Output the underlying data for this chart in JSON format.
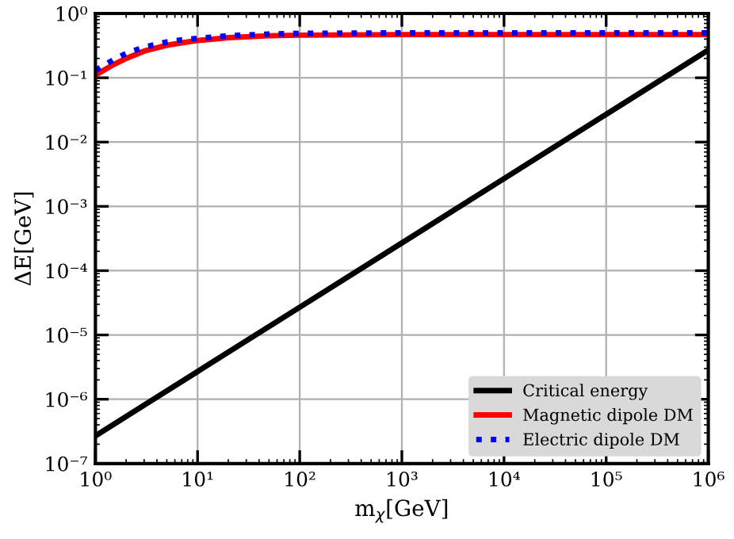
{
  "chart_data": {
    "type": "line",
    "xlabel": "m$_{χ}$[GeV]",
    "ylabel": "ΔE[GeV]",
    "log": "xy",
    "grid": true,
    "legend": "bottom right",
    "xlim": [
      1,
      1000000
    ],
    "ylim": [
      1e-07,
      1
    ],
    "xticks": [
      {
        "value": 1,
        "label": "10⁰"
      },
      {
        "value": 10,
        "label": "10¹"
      },
      {
        "value": 100,
        "label": "10²"
      },
      {
        "value": 1000,
        "label": "10³"
      },
      {
        "value": 10000,
        "label": "10⁴"
      },
      {
        "value": 100000,
        "label": "10⁵"
      },
      {
        "value": 1000000,
        "label": "10⁶"
      }
    ],
    "yticks": [
      {
        "value": 1e-07,
        "label": "10⁻⁷"
      },
      {
        "value": 1e-06,
        "label": "10⁻⁶"
      },
      {
        "value": 1e-05,
        "label": "10⁻⁵"
      },
      {
        "value": 0.0001,
        "label": "10⁻⁴"
      },
      {
        "value": 0.001,
        "label": "10⁻³"
      },
      {
        "value": 0.01,
        "label": "10⁻²"
      },
      {
        "value": 0.1,
        "label": "10⁻¹"
      },
      {
        "value": 1,
        "label": "10⁰"
      }
    ],
    "series": [
      {
        "name": "Critical energy",
        "color": "#000000",
        "line_style": "solid",
        "x": [
          1,
          10,
          100,
          1000,
          10000,
          100000,
          1000000
        ],
        "values": [
          2.7e-07,
          2.7e-06,
          2.7e-05,
          0.00027,
          0.0027,
          0.027,
          0.27
        ]
      },
      {
        "name": "Magnetic dipole DM",
        "color": "#ff0000",
        "line_style": "solid",
        "x": [
          1,
          1.5,
          2,
          3,
          5,
          7,
          10,
          20,
          50,
          100,
          1000,
          1000000
        ],
        "values": [
          0.11,
          0.16,
          0.2,
          0.26,
          0.32,
          0.35,
          0.38,
          0.42,
          0.45,
          0.46,
          0.47,
          0.47
        ]
      },
      {
        "name": "Electric dipole DM",
        "color": "#0000ff",
        "line_style": "dotted",
        "x": [
          1,
          1.5,
          2,
          3,
          5,
          7,
          10,
          20,
          50,
          100,
          1000,
          1000000
        ],
        "values": [
          0.13,
          0.19,
          0.24,
          0.3,
          0.36,
          0.39,
          0.41,
          0.45,
          0.48,
          0.49,
          0.5,
          0.5
        ]
      }
    ]
  }
}
